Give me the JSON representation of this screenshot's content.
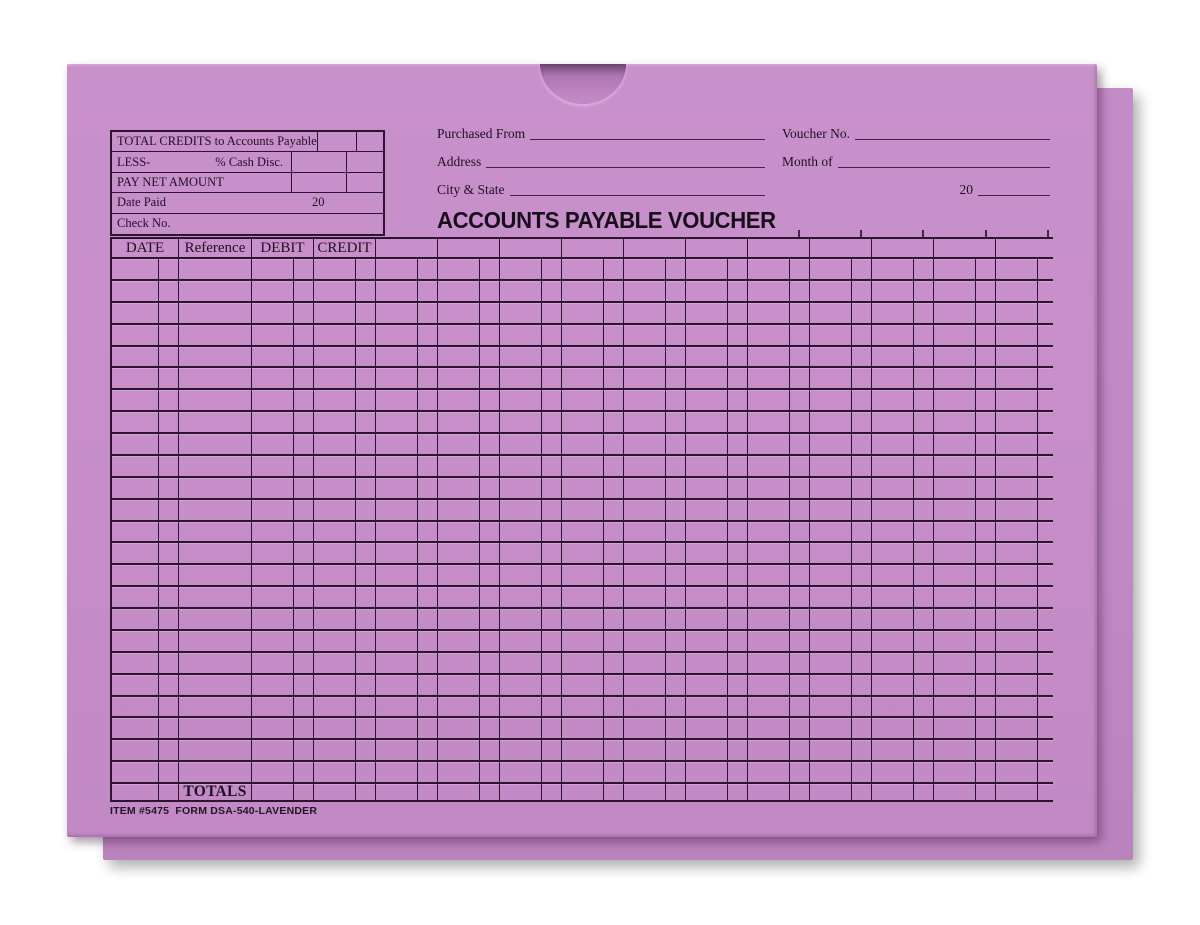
{
  "colors": {
    "envelope_front": "#c78ec9",
    "envelope_back": "#c189c4",
    "grid_line": "#2d1530",
    "ink": "#1f0f23"
  },
  "summary_box": {
    "row1_label": "TOTAL CREDITS to Accounts Payable",
    "row2_left": "LESS-",
    "row2_right": "% Cash Disc.",
    "row3_label": "PAY NET AMOUNT",
    "row4_label": "Date Paid",
    "row4_year": "20",
    "row5_label": "Check No."
  },
  "fields": {
    "purchased_from": "Purchased From",
    "voucher_no": "Voucher No.",
    "address": "Address",
    "month_of": "Month of",
    "city_state": "City & State",
    "year_prefix": "20"
  },
  "title": "ACCOUNTS PAYABLE VOUCHER",
  "grid": {
    "header_date": "DATE",
    "header_reference": "Reference",
    "header_debit": "DEBIT",
    "header_credit": "CREDIT",
    "unlabeled_header_cells": 11,
    "body_rows": 24,
    "totals_label": "TOTALS"
  },
  "footer": "ITEM #5475  FORM DSA-540-LAVENDER"
}
